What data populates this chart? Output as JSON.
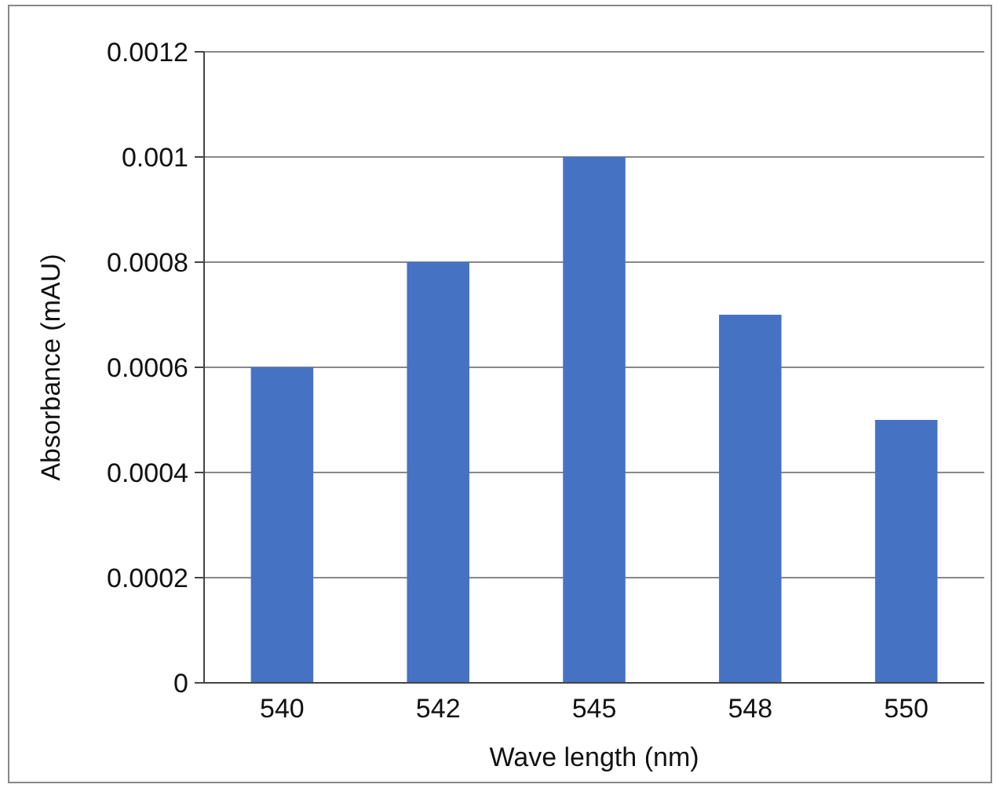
{
  "chart_data": {
    "type": "bar",
    "xlabel": "Wave length (nm)",
    "ylabel": "Absorbance (mAU)",
    "categories": [
      "540",
      "542",
      "545",
      "548",
      "550"
    ],
    "values": [
      0.0006,
      0.0008,
      0.001,
      0.0007,
      0.0005
    ],
    "color": "#4672c4",
    "ylim": [
      0,
      0.0012
    ],
    "yticks": [
      0,
      0.0002,
      0.0004,
      0.0006,
      0.0008,
      0.001,
      0.0012
    ],
    "grid": "y"
  }
}
